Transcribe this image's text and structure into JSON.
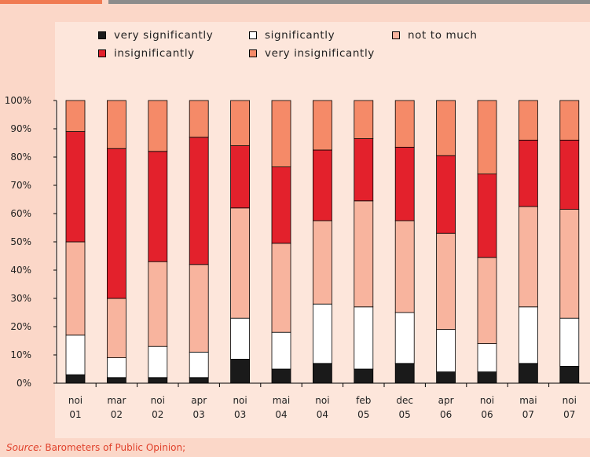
{
  "chart_data": {
    "type": "bar",
    "stacked": true,
    "categories": [
      [
        "noi",
        "01"
      ],
      [
        "mar",
        "02"
      ],
      [
        "noi",
        "02"
      ],
      [
        "apr",
        "03"
      ],
      [
        "noi",
        "03"
      ],
      [
        "mai",
        "04"
      ],
      [
        "noi",
        "04"
      ],
      [
        "feb",
        "05"
      ],
      [
        "dec",
        "05"
      ],
      [
        "apr",
        "06"
      ],
      [
        "noi",
        "06"
      ],
      [
        "mai",
        "07"
      ],
      [
        "noi",
        "07"
      ]
    ],
    "series": [
      {
        "name": "very significantly",
        "color": "#1a1a1a",
        "values": [
          3,
          2,
          2,
          2,
          8.5,
          5,
          7,
          5,
          7,
          4,
          4,
          7,
          6
        ]
      },
      {
        "name": "significantly",
        "color": "#ffffff",
        "values": [
          14,
          7,
          11,
          9,
          14.5,
          13,
          21,
          22,
          18,
          15,
          10,
          20,
          17
        ]
      },
      {
        "name": "not to much",
        "color": "#f8b49e",
        "values": [
          33,
          21,
          30,
          31,
          39,
          31.5,
          29.5,
          37.5,
          32.5,
          34,
          30.5,
          35.5,
          38.5
        ]
      },
      {
        "name": "insignificantly",
        "color": "#e3212c",
        "values": [
          39,
          53,
          39,
          45,
          22,
          27,
          25,
          22,
          26,
          27.5,
          29.5,
          23.5,
          24.5
        ]
      },
      {
        "name": "very insignificantly",
        "color": "#f58a68",
        "values": [
          11,
          17,
          18,
          13,
          16,
          23.5,
          17.5,
          13.5,
          16.5,
          19.5,
          26,
          14,
          14
        ]
      }
    ],
    "yticks": [
      "0%",
      "10%",
      "20%",
      "30%",
      "40%",
      "50%",
      "60%",
      "70%",
      "80%",
      "90%",
      "100%"
    ],
    "ylim": [
      0,
      100
    ],
    "title": "",
    "xlabel": "",
    "ylabel": "",
    "legend_position": "top"
  },
  "source": {
    "label": "Source:",
    "text": " Barometers of Public Opinion;"
  }
}
